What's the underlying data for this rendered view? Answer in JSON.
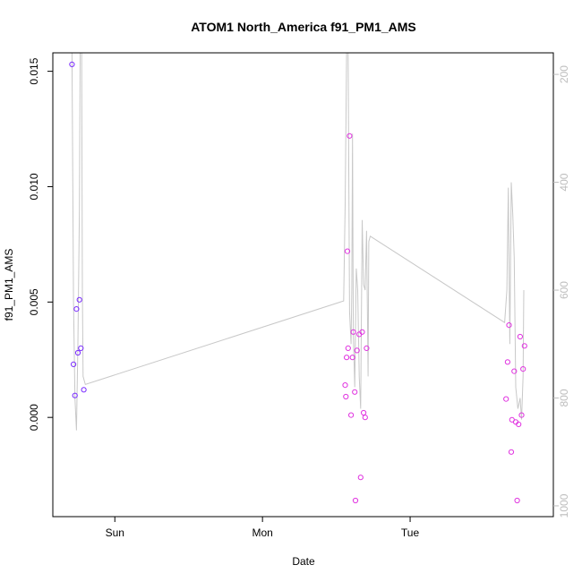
{
  "chart_data": {
    "type": "scatter",
    "title": "ATOM1 North_America f91_PM1_AMS",
    "xlabel": "Date",
    "ylabel": "f91_PM1_AMS",
    "x_ticks": [
      {
        "value": 1.0,
        "label": "Sun"
      },
      {
        "value": 2.0,
        "label": "Mon"
      },
      {
        "value": 3.0,
        "label": "Tue"
      }
    ],
    "y_ticks": [
      {
        "value": 0.0,
        "label": "0.000"
      },
      {
        "value": 0.005,
        "label": "0.005"
      },
      {
        "value": 0.01,
        "label": "0.010"
      },
      {
        "value": 0.015,
        "label": "0.015"
      }
    ],
    "y2_ticks": [
      {
        "value": 200,
        "label": "200"
      },
      {
        "value": 400,
        "label": "400"
      },
      {
        "value": 600,
        "label": "600"
      },
      {
        "value": 800,
        "label": "800"
      },
      {
        "value": 1000,
        "label": "1000"
      }
    ],
    "xlim": [
      0.58,
      3.97
    ],
    "ylim": [
      -0.0043,
      0.0158
    ],
    "y2lim": [
      1020,
      160
    ],
    "y2_reversed": true,
    "grid": false,
    "legend": "none",
    "colors": {
      "points_early": "#7a2bff",
      "points_late": "#e033e0",
      "secondary_line": "#c8c8c8",
      "axis": "#000000",
      "secondary_axis": "#bdbdbd"
    },
    "points": [
      {
        "x": 0.71,
        "y": 0.0153
      },
      {
        "x": 0.72,
        "y": 0.0023
      },
      {
        "x": 0.73,
        "y": 0.00095
      },
      {
        "x": 0.74,
        "y": 0.0047
      },
      {
        "x": 0.75,
        "y": 0.0028
      },
      {
        "x": 0.76,
        "y": 0.0051
      },
      {
        "x": 0.77,
        "y": 0.003
      },
      {
        "x": 0.79,
        "y": 0.0012
      },
      {
        "x": 2.56,
        "y": 0.0014
      },
      {
        "x": 2.565,
        "y": 0.0009
      },
      {
        "x": 2.57,
        "y": 0.0026
      },
      {
        "x": 2.575,
        "y": 0.0072
      },
      {
        "x": 2.58,
        "y": 0.003
      },
      {
        "x": 2.59,
        "y": 0.0122
      },
      {
        "x": 2.6,
        "y": 0.0001
      },
      {
        "x": 2.61,
        "y": 0.0026
      },
      {
        "x": 2.615,
        "y": 0.0037
      },
      {
        "x": 2.625,
        "y": 0.0011
      },
      {
        "x": 2.63,
        "y": -0.0036
      },
      {
        "x": 2.64,
        "y": 0.0029
      },
      {
        "x": 2.655,
        "y": 0.0036
      },
      {
        "x": 2.665,
        "y": -0.0026
      },
      {
        "x": 2.675,
        "y": 0.0037
      },
      {
        "x": 2.685,
        "y": 0.0002
      },
      {
        "x": 2.695,
        "y": 0.0
      },
      {
        "x": 2.705,
        "y": 0.003
      },
      {
        "x": 3.65,
        "y": 0.0008
      },
      {
        "x": 3.66,
        "y": 0.0024
      },
      {
        "x": 3.67,
        "y": 0.004
      },
      {
        "x": 3.685,
        "y": -0.0015
      },
      {
        "x": 3.69,
        "y": -0.0001
      },
      {
        "x": 3.705,
        "y": 0.002
      },
      {
        "x": 3.715,
        "y": -0.0002
      },
      {
        "x": 3.725,
        "y": -0.0036
      },
      {
        "x": 3.735,
        "y": -0.0003
      },
      {
        "x": 3.745,
        "y": 0.0035
      },
      {
        "x": 3.755,
        "y": 0.0001
      },
      {
        "x": 3.765,
        "y": 0.0021
      },
      {
        "x": 3.775,
        "y": 0.0031
      }
    ],
    "secondary_line": [
      {
        "x": 0.71,
        "y2": 160
      },
      {
        "x": 0.72,
        "y2": 620
      },
      {
        "x": 0.73,
        "y2": 800
      },
      {
        "x": 0.74,
        "y2": 860
      },
      {
        "x": 0.75,
        "y2": 700
      },
      {
        "x": 0.76,
        "y2": 450
      },
      {
        "x": 0.765,
        "y2": 160
      },
      {
        "x": 0.775,
        "y2": 160
      },
      {
        "x": 0.78,
        "y2": 600
      },
      {
        "x": 0.785,
        "y2": 760
      },
      {
        "x": 0.8,
        "y2": 775
      },
      {
        "x": 2.55,
        "y2": 620
      },
      {
        "x": 2.56,
        "y2": 440
      },
      {
        "x": 2.57,
        "y2": 160
      },
      {
        "x": 2.58,
        "y2": 160
      },
      {
        "x": 2.59,
        "y2": 640
      },
      {
        "x": 2.6,
        "y2": 700
      },
      {
        "x": 2.605,
        "y2": 600
      },
      {
        "x": 2.61,
        "y2": 310
      },
      {
        "x": 2.615,
        "y2": 680
      },
      {
        "x": 2.625,
        "y2": 780
      },
      {
        "x": 2.635,
        "y2": 560
      },
      {
        "x": 2.645,
        "y2": 600
      },
      {
        "x": 2.655,
        "y2": 760
      },
      {
        "x": 2.665,
        "y2": 820
      },
      {
        "x": 2.675,
        "y2": 470
      },
      {
        "x": 2.685,
        "y2": 590
      },
      {
        "x": 2.695,
        "y2": 600
      },
      {
        "x": 2.705,
        "y2": 490
      },
      {
        "x": 2.715,
        "y2": 760
      },
      {
        "x": 2.72,
        "y2": 510
      },
      {
        "x": 2.73,
        "y2": 500
      },
      {
        "x": 3.64,
        "y2": 660
      },
      {
        "x": 3.655,
        "y2": 600
      },
      {
        "x": 3.665,
        "y2": 410
      },
      {
        "x": 3.675,
        "y2": 700
      },
      {
        "x": 3.685,
        "y2": 400
      },
      {
        "x": 3.695,
        "y2": 460
      },
      {
        "x": 3.705,
        "y2": 540
      },
      {
        "x": 3.715,
        "y2": 780
      },
      {
        "x": 3.73,
        "y2": 820
      },
      {
        "x": 3.745,
        "y2": 800
      },
      {
        "x": 3.755,
        "y2": 840
      },
      {
        "x": 3.765,
        "y2": 760
      },
      {
        "x": 3.77,
        "y2": 600
      }
    ]
  }
}
